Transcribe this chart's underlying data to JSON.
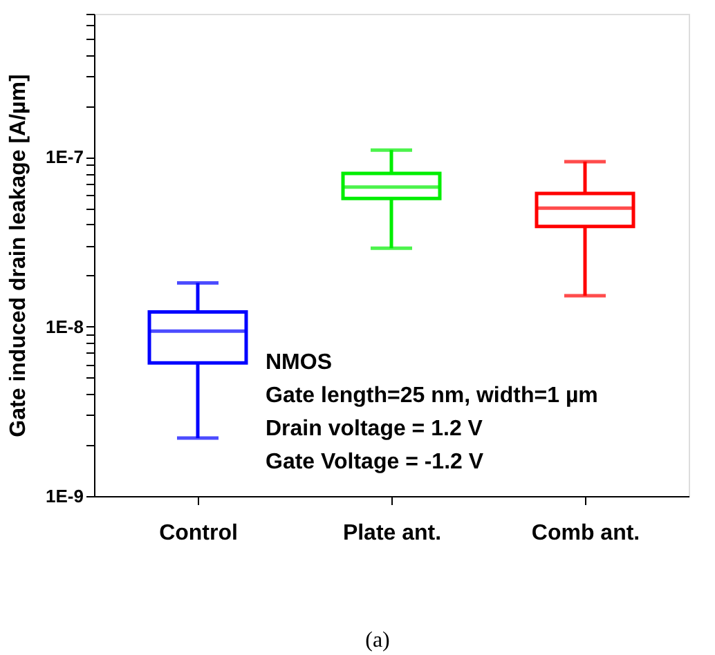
{
  "chart_data": {
    "type": "box",
    "ylabel": "Gate induced drain leakage [A/µm]",
    "categories": [
      "Control",
      "Plate ant.",
      "Comb ant."
    ],
    "colors": [
      "#0000ff",
      "#00ee00",
      "#ff0000"
    ],
    "boxes": [
      {
        "low": 2.2e-09,
        "q1": 6.1e-09,
        "median": 9.4e-09,
        "q3": 1.22e-08,
        "high": 1.81e-08
      },
      {
        "low": 2.9e-08,
        "q1": 5.7e-08,
        "median": 6.65e-08,
        "q3": 8e-08,
        "high": 1.1e-07
      },
      {
        "low": 1.52e-08,
        "q1": 3.9e-08,
        "median": 5e-08,
        "q3": 6.1e-08,
        "high": 9.4e-08
      }
    ],
    "log": true,
    "ylim": [
      1e-09,
      7e-07
    ],
    "yticks": [
      {
        "value": 1e-09,
        "label": "1E-9"
      },
      {
        "value": 2e-09,
        "label": null
      },
      {
        "value": 3e-09,
        "label": null
      },
      {
        "value": 4e-09,
        "label": null
      },
      {
        "value": 5e-09,
        "label": null
      },
      {
        "value": 6e-09,
        "label": null
      },
      {
        "value": 7e-09,
        "label": null
      },
      {
        "value": 8e-09,
        "label": null
      },
      {
        "value": 9e-09,
        "label": null
      },
      {
        "value": 1e-08,
        "label": "1E-8"
      },
      {
        "value": 2e-08,
        "label": null
      },
      {
        "value": 3e-08,
        "label": null
      },
      {
        "value": 4e-08,
        "label": null
      },
      {
        "value": 5e-08,
        "label": null
      },
      {
        "value": 6e-08,
        "label": null
      },
      {
        "value": 7e-08,
        "label": null
      },
      {
        "value": 8e-08,
        "label": null
      },
      {
        "value": 9e-08,
        "label": null
      },
      {
        "value": 1e-07,
        "label": "1E-7"
      },
      {
        "value": 2e-07,
        "label": null
      },
      {
        "value": 3e-07,
        "label": null
      },
      {
        "value": 4e-07,
        "label": null
      },
      {
        "value": 5e-07,
        "label": null
      },
      {
        "value": 6e-07,
        "label": null
      },
      {
        "value": 7e-07,
        "label": null
      }
    ],
    "grid": false,
    "legend": false,
    "annotations": [
      "NMOS",
      "Gate length=25 nm, width=1 µm",
      "Drain voltage = 1.2 V",
      "Gate Voltage = -1.2 V",
      "(a)"
    ]
  }
}
